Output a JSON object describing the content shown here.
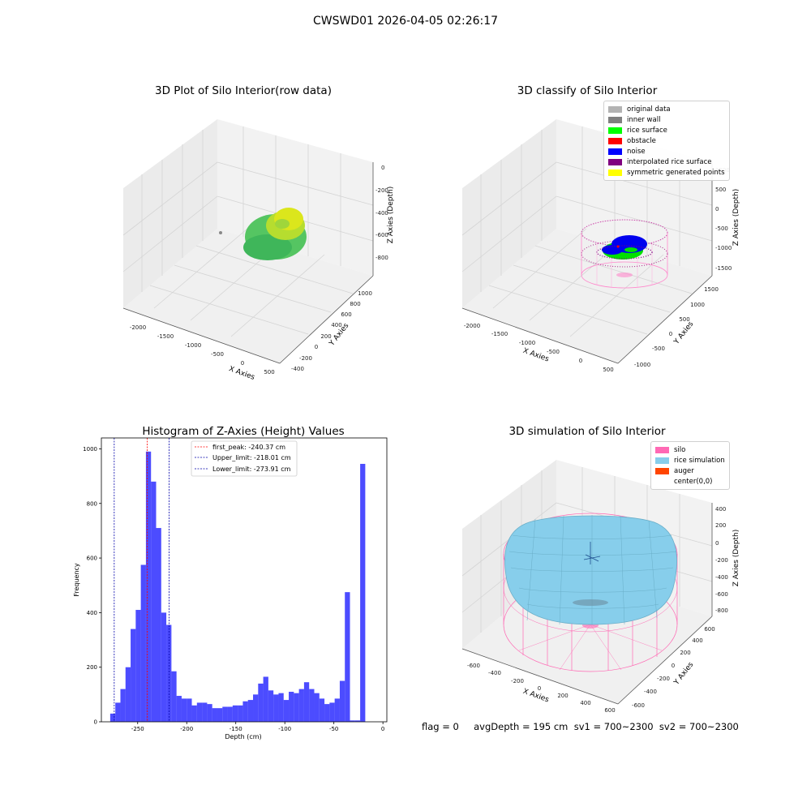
{
  "suptitle": "CWSWD01 2026-04-05 02:26:17",
  "footer": "flag = 0     avgDepth = 195 cm  sv1 = 700~2300  sv2 = 700~2300",
  "panels": {
    "raw": {
      "title": "3D Plot of Silo Interior(row data)",
      "xlabel": "X Axies",
      "ylabel": "Y Axies",
      "zlabel": "Z Axies (Depth)",
      "xticks": [
        "-2000",
        "-1500",
        "-1000",
        "-500",
        "0",
        "500"
      ],
      "yticks": [
        "-400",
        "-200",
        "0",
        "200",
        "400",
        "600",
        "800",
        "1000"
      ],
      "zticks": [
        "0",
        "-200",
        "-400",
        "-600",
        "-800"
      ]
    },
    "classify": {
      "title": "3D classify of Silo Interior",
      "xlabel": "X Axies",
      "ylabel": "Y Axies",
      "zlabel": "Z Axies (Depth)",
      "xticks": [
        "-2000",
        "-1500",
        "-1000",
        "-500",
        "0",
        "500"
      ],
      "yticks": [
        "-1000",
        "-500",
        "0",
        "500",
        "1000",
        "1500"
      ],
      "zticks": [
        "1000",
        "500",
        "0",
        "-500",
        "-1000",
        "-1500"
      ],
      "legend": [
        {
          "label": "original data",
          "color": "#b3b3b3"
        },
        {
          "label": "inner wall",
          "color": "#808080"
        },
        {
          "label": "rice surface",
          "color": "#00ff00"
        },
        {
          "label": "obstacle",
          "color": "#ff0000"
        },
        {
          "label": "noise",
          "color": "#0000ff"
        },
        {
          "label": "interpolated rice surface",
          "color": "#800080"
        },
        {
          "label": "symmetric generated points",
          "color": "#ffff00"
        }
      ]
    },
    "simulation": {
      "title": "3D simulation of Silo Interior",
      "xlabel": "X Axies",
      "ylabel": "Y Axies",
      "zlabel": "Z Axies (Depth)",
      "xticks": [
        "-600",
        "-400",
        "-200",
        "0",
        "200",
        "400",
        "600"
      ],
      "yticks": [
        "-600",
        "-400",
        "-200",
        "0",
        "200",
        "400",
        "600"
      ],
      "zticks": [
        "400",
        "200",
        "0",
        "-200",
        "-400",
        "-600",
        "-800"
      ],
      "legend": [
        {
          "label": "silo",
          "color": "#ff69b4"
        },
        {
          "label": "rice simulation",
          "color": "#87ceeb"
        },
        {
          "label": "auger",
          "color": "#ff4500"
        },
        {
          "label": "center(0,0)",
          "color": "#ffffff"
        }
      ]
    }
  },
  "chart_data": {
    "type": "bar",
    "title": "Histogram of Z-Axies (Height) Values",
    "xlabel": "Depth (cm)",
    "ylabel": "Frequency",
    "bar_color": "#0000ff",
    "xlim": [
      -287,
      4
    ],
    "ylim": [
      0,
      1040
    ],
    "xticks": [
      -250,
      -200,
      -150,
      -100,
      -50,
      0
    ],
    "yticks": [
      0,
      200,
      400,
      600,
      800,
      1000
    ],
    "bin_width": 5.2,
    "bins_start": -278,
    "values": [
      30,
      70,
      120,
      200,
      340,
      410,
      575,
      990,
      880,
      710,
      400,
      355,
      185,
      95,
      85,
      85,
      60,
      70,
      70,
      65,
      50,
      50,
      55,
      55,
      60,
      60,
      75,
      80,
      100,
      140,
      165,
      115,
      100,
      105,
      80,
      110,
      105,
      120,
      145,
      120,
      105,
      85,
      65,
      70,
      85,
      150,
      475,
      5,
      5,
      945
    ],
    "vlines": [
      {
        "label": "first_peak: -240.37 cm",
        "x": -240.37,
        "color": "#ff0000"
      },
      {
        "label": "Upper_limit: -218.01 cm",
        "x": -218.01,
        "color": "#0000aa"
      },
      {
        "label": "Lower_limit: -273.91 cm",
        "x": -273.91,
        "color": "#0000aa"
      }
    ]
  }
}
